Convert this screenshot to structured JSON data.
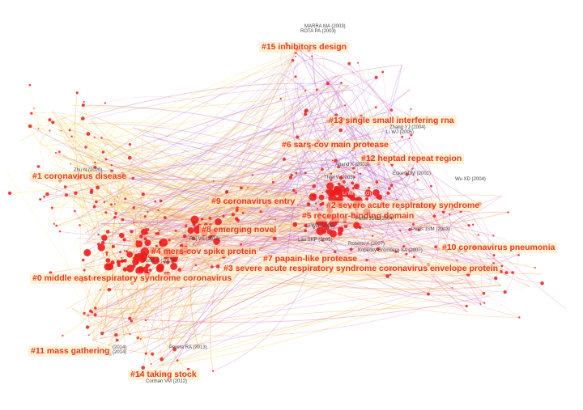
{
  "colors": {
    "label": "#e8361b",
    "label_bg": "#ffecbe",
    "node": "#ee1c1c",
    "edge_yellow": "#f6d23c",
    "edge_orange": "#f39a2c",
    "edge_purple": "#b45bd0",
    "edge_pink": "#e05a9c"
  },
  "clusters": [
    {
      "id": "c15",
      "label": "#15 inhibitors design"
    },
    {
      "id": "c13",
      "label": "#13 single small interfering rna"
    },
    {
      "id": "c6",
      "label": "#6 sars-cov main protease"
    },
    {
      "id": "c12",
      "label": "#12 heptad repeat region"
    },
    {
      "id": "c1",
      "label": "#1 coronavirus disease"
    },
    {
      "id": "c9",
      "label": "#9 coronavirus entry"
    },
    {
      "id": "c2",
      "label": "#2 severe acute respiratory syndrome"
    },
    {
      "id": "c5",
      "label": "#5 receptor-binding domain"
    },
    {
      "id": "c8",
      "label": "#8 emerging novel"
    },
    {
      "id": "c10",
      "label": "#10 coronavirus pneumonia"
    },
    {
      "id": "c4",
      "label": "#4 mers-cov spike protein"
    },
    {
      "id": "c7",
      "label": "#7 papain-like protease"
    },
    {
      "id": "c3",
      "label": "#3 severe acute respiratory syndrome coronavirus envelope protein"
    },
    {
      "id": "c0",
      "label": "#0 middle east respiratory syndrome coronavirus"
    },
    {
      "id": "c11",
      "label": "#11 mass gathering"
    },
    {
      "id": "c14",
      "label": "#14 taking stock"
    }
  ],
  "authors": [
    {
      "id": "a1",
      "label": "MARRA MA (2003)"
    },
    {
      "id": "a2",
      "label": "ROTA PA (2003)"
    },
    {
      "id": "a3",
      "label": "Zhang YJ (2004)"
    },
    {
      "id": "a4",
      "label": "Li WJ (2005)"
    },
    {
      "id": "a5",
      "label": "Anand K (2003)"
    },
    {
      "id": "a6",
      "label": "Eckert DM (2001)"
    },
    {
      "id": "a7",
      "label": "Wu XD (2004)"
    },
    {
      "id": "a8",
      "label": "Thiel V (2003)"
    },
    {
      "id": "a9",
      "label": "Li WH (2003)"
    },
    {
      "id": "a10",
      "label": "Zhu N (2020)"
    },
    {
      "id": "a11",
      "label": "Perlis JSM (2004)"
    },
    {
      "id": "a12",
      "label": "Li WD (2005)"
    },
    {
      "id": "a13",
      "label": "Peiris JSM (2003)"
    },
    {
      "id": "a14",
      "label": "Lau SKP (2005)"
    },
    {
      "id": "a15",
      "label": "Roberts A (2007)"
    },
    {
      "id": "a16",
      "label": "Kopecky-Bromberg SA (2007)"
    },
    {
      "id": "a17",
      "label": "Raj VS (2013)"
    },
    {
      "id": "a18",
      "label": "Assiri A (2013)"
    },
    {
      "id": "a19",
      "label": "Perera RA (2013)"
    },
    {
      "id": "a20",
      "label": "Corman VM (2012)"
    },
    {
      "id": "a21",
      "label": "(2014)"
    },
    {
      "id": "a22",
      "label": "(2014)"
    }
  ]
}
